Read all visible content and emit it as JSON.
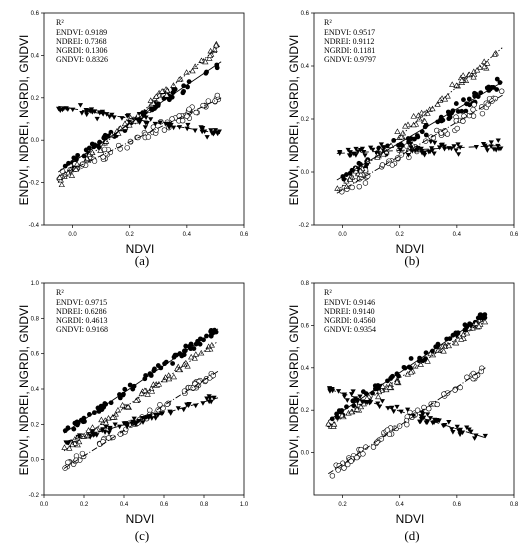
{
  "figure": {
    "panels": [
      {
        "label": "(a)",
        "x_title": "NDVI",
        "y_title": "ENDVI, NDREI, NGRDI, GNDVI",
        "x_ticks": [
          "0.0",
          "0.2",
          "0.4",
          "0.6"
        ],
        "y_ticks": [
          "-0.4",
          "-0.2",
          "0.0",
          "0.2",
          "0.4",
          "0.6"
        ],
        "legend_title": "R²",
        "legend": [
          "ENDVI: 0.9189",
          "NDREI: 0.7368",
          "NGRDI: 0.1306",
          "GNDVI: 0.8326"
        ]
      },
      {
        "label": "(b)",
        "x_title": "NDVI",
        "y_title": "ENDVI, NDREI, NGRDI, GNDVI",
        "x_ticks": [
          "0.0",
          "0.2",
          "0.4",
          "0.6"
        ],
        "y_ticks": [
          "-0.2",
          "0.0",
          "0.2",
          "0.4",
          "0.6"
        ],
        "legend_title": "R²",
        "legend": [
          "ENDVI: 0.9517",
          "NDREI: 0.9112",
          "NGRDI: 0.1181",
          "GNDVI: 0.9797"
        ]
      },
      {
        "label": "(c)",
        "x_title": "NDVI",
        "y_title": "ENDVI, NDREI, NGRDI, GNDVI",
        "x_ticks": [
          "0.0",
          "0.2",
          "0.4",
          "0.6",
          "0.8",
          "1.0"
        ],
        "y_ticks": [
          "-0.2",
          "0.0",
          "0.2",
          "0.4",
          "0.6",
          "0.8",
          "1.0"
        ],
        "legend_title": "R²",
        "legend": [
          "ENDVI: 0.9715",
          "NDREI: 0.6286",
          "NGRDI: 0.4613",
          "GNDVI: 0.9168"
        ]
      },
      {
        "label": "(d)",
        "x_title": "NDVI",
        "y_title": "ENDVI, NDREI, NGRDI, GNDVI",
        "x_ticks": [
          "0.2",
          "0.4",
          "0.6",
          "0.8"
        ],
        "y_ticks": [
          "0.0",
          "0.2",
          "0.4",
          "0.6",
          "0.8"
        ],
        "legend_title": "R²",
        "legend": [
          "ENDVI: 0.9146",
          "NDREI: 0.9140",
          "NGRDI: 0.4560",
          "GNDVI: 0.9354"
        ]
      }
    ]
  },
  "chart_data": [
    {
      "type": "scatter",
      "xlim": [
        -0.1,
        0.6
      ],
      "ylim": [
        -0.4,
        0.6
      ],
      "series": [
        {
          "name": "ENDVI",
          "marker": "filled-circle",
          "fit": [
            [
              -0.05,
              -0.15
            ],
            [
              0.52,
              0.37
            ]
          ]
        },
        {
          "name": "NDREI",
          "marker": "open-circle",
          "fit": [
            [
              -0.05,
              -0.17
            ],
            [
              0.52,
              0.2
            ]
          ]
        },
        {
          "name": "NGRDI",
          "marker": "filled-triangle-down",
          "fit": [
            [
              -0.05,
              0.16
            ],
            [
              0.52,
              0.03
            ]
          ]
        },
        {
          "name": "GNDVI",
          "marker": "open-triangle-up",
          "fit": [
            [
              -0.05,
              -0.2
            ],
            [
              0.52,
              0.45
            ]
          ]
        }
      ],
      "grid": false
    },
    {
      "type": "scatter",
      "xlim": [
        -0.1,
        0.6
      ],
      "ylim": [
        -0.2,
        0.6
      ],
      "series": [
        {
          "name": "ENDVI",
          "marker": "filled-circle",
          "fit": [
            [
              -0.02,
              -0.03
            ],
            [
              0.56,
              0.34
            ]
          ]
        },
        {
          "name": "NDREI",
          "marker": "open-circle",
          "fit": [
            [
              -0.02,
              -0.08
            ],
            [
              0.56,
              0.29
            ]
          ]
        },
        {
          "name": "NGRDI",
          "marker": "filled-triangle-down",
          "fit": [
            [
              -0.02,
              0.07
            ],
            [
              0.56,
              0.1
            ]
          ]
        },
        {
          "name": "GNDVI",
          "marker": "open-triangle-up",
          "fit": [
            [
              -0.02,
              -0.07
            ],
            [
              0.56,
              0.47
            ]
          ]
        }
      ],
      "grid": false
    },
    {
      "type": "scatter",
      "xlim": [
        0.0,
        1.0
      ],
      "ylim": [
        -0.2,
        1.0
      ],
      "series": [
        {
          "name": "ENDVI",
          "marker": "filled-circle",
          "fit": [
            [
              0.1,
              0.15
            ],
            [
              0.87,
              0.74
            ]
          ]
        },
        {
          "name": "NDREI",
          "marker": "open-circle",
          "fit": [
            [
              0.1,
              -0.05
            ],
            [
              0.87,
              0.5
            ]
          ]
        },
        {
          "name": "NGRDI",
          "marker": "filled-triangle-down",
          "fit": [
            [
              0.1,
              0.1
            ],
            [
              0.87,
              0.35
            ]
          ]
        },
        {
          "name": "GNDVI",
          "marker": "open-triangle-up",
          "fit": [
            [
              0.1,
              0.05
            ],
            [
              0.87,
              0.67
            ]
          ]
        }
      ],
      "grid": false
    },
    {
      "type": "scatter",
      "xlim": [
        0.1,
        0.8
      ],
      "ylim": [
        -0.2,
        0.8
      ],
      "series": [
        {
          "name": "ENDVI",
          "marker": "filled-circle",
          "fit": [
            [
              0.15,
              0.15
            ],
            [
              0.7,
              0.65
            ]
          ]
        },
        {
          "name": "NDREI",
          "marker": "open-circle",
          "fit": [
            [
              0.15,
              -0.1
            ],
            [
              0.7,
              0.4
            ]
          ]
        },
        {
          "name": "NGRDI",
          "marker": "filled-triangle-down",
          "fit": [
            [
              0.15,
              0.3
            ],
            [
              0.7,
              0.07
            ]
          ]
        },
        {
          "name": "GNDVI",
          "marker": "open-triangle-up",
          "fit": [
            [
              0.15,
              0.12
            ],
            [
              0.7,
              0.63
            ]
          ]
        }
      ],
      "grid": false
    }
  ]
}
